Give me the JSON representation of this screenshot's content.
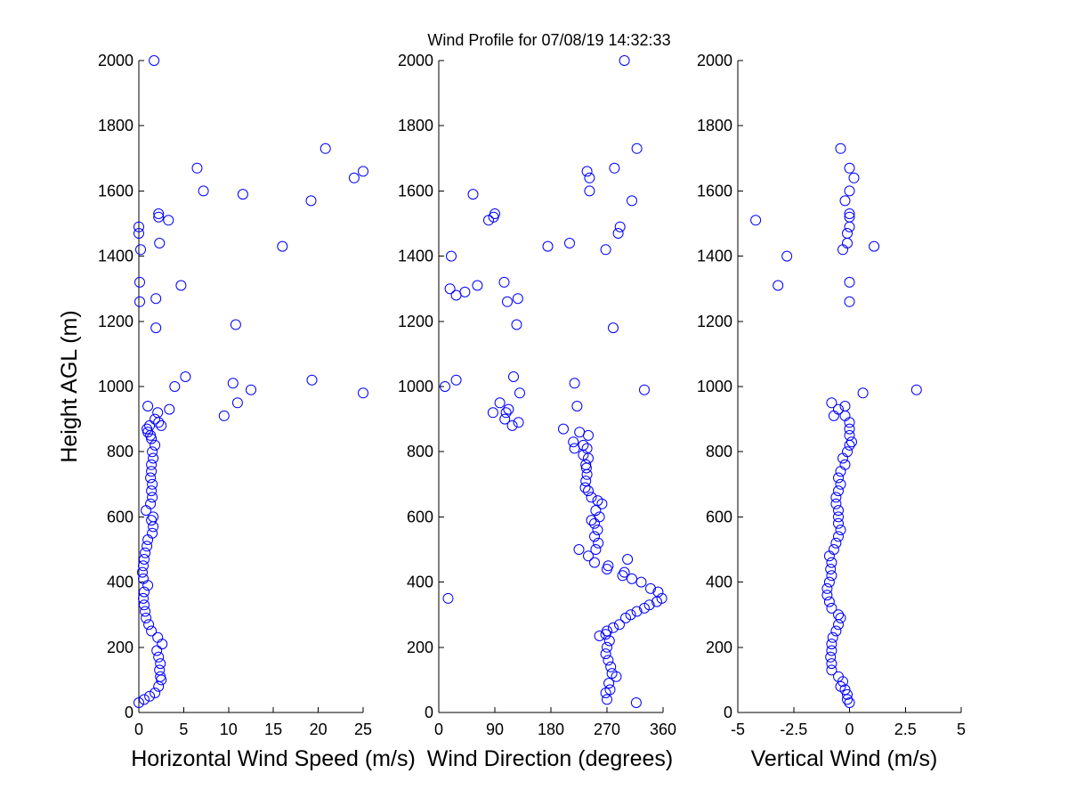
{
  "title": "Wind Profile for  07/08/19 14:32:33",
  "colors": {
    "marker": "#0000ff",
    "axis": "#000000",
    "background": "#ffffff"
  },
  "chart_data": [
    {
      "type": "scatter",
      "xlabel": "Horizontal Wind Speed (m/s)",
      "ylabel": "Height AGL (m)",
      "xlim": [
        0,
        25
      ],
      "ylim": [
        0,
        2000
      ],
      "xticks": [
        0,
        5,
        10,
        15,
        20,
        25
      ],
      "xtick_labels": [
        "0",
        "5",
        "10",
        "15",
        "20",
        "25"
      ],
      "yticks": [
        0,
        200,
        400,
        600,
        800,
        1000,
        1200,
        1400,
        1600,
        1800,
        2000
      ],
      "ytick_labels": [
        "0",
        "200",
        "400",
        "600",
        "800",
        "1000",
        "1200",
        "1400",
        "1600",
        "1800",
        "2000"
      ],
      "grid": false,
      "marker": "circle-open",
      "points": [
        [
          0,
          30
        ],
        [
          0.6,
          40
        ],
        [
          1.2,
          50
        ],
        [
          1.8,
          60
        ],
        [
          2.2,
          80
        ],
        [
          2.5,
          100
        ],
        [
          2.4,
          110
        ],
        [
          2.3,
          130
        ],
        [
          2.4,
          150
        ],
        [
          2.2,
          170
        ],
        [
          2.0,
          190
        ],
        [
          2.6,
          210
        ],
        [
          2.1,
          230
        ],
        [
          1.4,
          250
        ],
        [
          1.1,
          270
        ],
        [
          0.8,
          290
        ],
        [
          0.7,
          310
        ],
        [
          0.6,
          330
        ],
        [
          0.5,
          350
        ],
        [
          0.6,
          370
        ],
        [
          1.0,
          390
        ],
        [
          0.5,
          410
        ],
        [
          0.4,
          430
        ],
        [
          0.5,
          450
        ],
        [
          0.6,
          470
        ],
        [
          0.7,
          490
        ],
        [
          0.9,
          510
        ],
        [
          1.0,
          530
        ],
        [
          1.5,
          550
        ],
        [
          1.6,
          570
        ],
        [
          1.4,
          590
        ],
        [
          1.6,
          600
        ],
        [
          0.8,
          620
        ],
        [
          1.3,
          640
        ],
        [
          1.5,
          660
        ],
        [
          1.4,
          680
        ],
        [
          1.5,
          700
        ],
        [
          1.3,
          720
        ],
        [
          1.4,
          740
        ],
        [
          1.4,
          760
        ],
        [
          1.6,
          780
        ],
        [
          1.5,
          800
        ],
        [
          1.8,
          820
        ],
        [
          1.4,
          840
        ],
        [
          1.0,
          860
        ],
        [
          1.2,
          880
        ],
        [
          2.2,
          890
        ],
        [
          1.8,
          900
        ],
        [
          2.1,
          920
        ],
        [
          1.0,
          940
        ],
        [
          3.4,
          930
        ],
        [
          2.5,
          880
        ],
        [
          0.9,
          870
        ],
        [
          1.3,
          850
        ],
        [
          4.0,
          1000
        ],
        [
          5.2,
          1030
        ],
        [
          9.5,
          910
        ],
        [
          10.5,
          1010
        ],
        [
          11.0,
          950
        ],
        [
          12.5,
          990
        ],
        [
          19.3,
          1020
        ],
        [
          25.0,
          980
        ],
        [
          1.9,
          1180
        ],
        [
          10.8,
          1190
        ],
        [
          0.1,
          1260
        ],
        [
          1.9,
          1270
        ],
        [
          4.7,
          1310
        ],
        [
          0.1,
          1320
        ],
        [
          0.2,
          1420
        ],
        [
          2.3,
          1440
        ],
        [
          16.0,
          1430
        ],
        [
          0.0,
          1470
        ],
        [
          0.0,
          1490
        ],
        [
          3.3,
          1510
        ],
        [
          2.2,
          1520
        ],
        [
          2.2,
          1530
        ],
        [
          11.6,
          1590
        ],
        [
          7.2,
          1600
        ],
        [
          6.5,
          1670
        ],
        [
          19.2,
          1570
        ],
        [
          24.0,
          1640
        ],
        [
          25.0,
          1660
        ],
        [
          20.8,
          1730
        ],
        [
          1.7,
          2000
        ]
      ]
    },
    {
      "type": "scatter",
      "xlabel": "Wind Direction (degrees)",
      "ylabel": "",
      "xlim": [
        0,
        360
      ],
      "ylim": [
        0,
        2000
      ],
      "xticks": [
        0,
        90,
        180,
        270,
        360
      ],
      "xtick_labels": [
        "0",
        "90",
        "180",
        "270",
        "360"
      ],
      "yticks": [
        0,
        200,
        400,
        600,
        800,
        1000,
        1200,
        1400,
        1600,
        1800,
        2000
      ],
      "ytick_labels": [
        "0",
        "200",
        "400",
        "600",
        "800",
        "1000",
        "1200",
        "1400",
        "1600",
        "1800",
        "2000"
      ],
      "grid": false,
      "marker": "circle-open",
      "points": [
        [
          317,
          30
        ],
        [
          270,
          40
        ],
        [
          268,
          60
        ],
        [
          275,
          70
        ],
        [
          273,
          90
        ],
        [
          285,
          110
        ],
        [
          278,
          120
        ],
        [
          276,
          140
        ],
        [
          272,
          160
        ],
        [
          268,
          180
        ],
        [
          270,
          200
        ],
        [
          274,
          220
        ],
        [
          268,
          240
        ],
        [
          258,
          235
        ],
        [
          270,
          250
        ],
        [
          280,
          260
        ],
        [
          290,
          270
        ],
        [
          300,
          290
        ],
        [
          308,
          300
        ],
        [
          318,
          310
        ],
        [
          330,
          320
        ],
        [
          338,
          330
        ],
        [
          350,
          340
        ],
        [
          358,
          350
        ],
        [
          352,
          370
        ],
        [
          340,
          380
        ],
        [
          325,
          400
        ],
        [
          310,
          410
        ],
        [
          295,
          420
        ],
        [
          298,
          430
        ],
        [
          270,
          440
        ],
        [
          272,
          450
        ],
        [
          303,
          470
        ],
        [
          250,
          460
        ],
        [
          240,
          480
        ],
        [
          252,
          500
        ],
        [
          225,
          500
        ],
        [
          256,
          520
        ],
        [
          250,
          540
        ],
        [
          255,
          560
        ],
        [
          250,
          580
        ],
        [
          245,
          590
        ],
        [
          258,
          600
        ],
        [
          252,
          620
        ],
        [
          262,
          640
        ],
        [
          255,
          650
        ],
        [
          245,
          660
        ],
        [
          240,
          680
        ],
        [
          235,
          690
        ],
        [
          236,
          710
        ],
        [
          238,
          730
        ],
        [
          237,
          750
        ],
        [
          236,
          760
        ],
        [
          240,
          780
        ],
        [
          232,
          790
        ],
        [
          238,
          810
        ],
        [
          218,
          810
        ],
        [
          232,
          820
        ],
        [
          216,
          830
        ],
        [
          240,
          850
        ],
        [
          226,
          860
        ],
        [
          200,
          870
        ],
        [
          128,
          890
        ],
        [
          118,
          880
        ],
        [
          106,
          900
        ],
        [
          108,
          920
        ],
        [
          87,
          920
        ],
        [
          112,
          930
        ],
        [
          98,
          950
        ],
        [
          222,
          940
        ],
        [
          130,
          980
        ],
        [
          10,
          1000
        ],
        [
          218,
          1010
        ],
        [
          28,
          1020
        ],
        [
          120,
          1030
        ],
        [
          330,
          990
        ],
        [
          125,
          1190
        ],
        [
          280,
          1180
        ],
        [
          110,
          1260
        ],
        [
          127,
          1270
        ],
        [
          28,
          1280
        ],
        [
          42,
          1290
        ],
        [
          18,
          1300
        ],
        [
          62,
          1310
        ],
        [
          105,
          1320
        ],
        [
          20,
          1400
        ],
        [
          175,
          1430
        ],
        [
          210,
          1440
        ],
        [
          268,
          1420
        ],
        [
          288,
          1470
        ],
        [
          291,
          1490
        ],
        [
          80,
          1510
        ],
        [
          88,
          1520
        ],
        [
          90,
          1530
        ],
        [
          55,
          1590
        ],
        [
          242,
          1600
        ],
        [
          242,
          1640
        ],
        [
          238,
          1660
        ],
        [
          310,
          1570
        ],
        [
          282,
          1670
        ],
        [
          318,
          1730
        ],
        [
          298,
          2000
        ],
        [
          15,
          350
        ]
      ]
    },
    {
      "type": "scatter",
      "xlabel": "Vertical Wind (m/s)",
      "ylabel": "",
      "xlim": [
        -5,
        5
      ],
      "ylim": [
        0,
        2000
      ],
      "xticks": [
        -5,
        -2.5,
        0,
        2.5,
        5
      ],
      "xtick_labels": [
        "-5",
        "-2.5",
        "0",
        "2.5",
        "5"
      ],
      "yticks": [
        0,
        200,
        400,
        600,
        800,
        1000,
        1200,
        1400,
        1600,
        1800,
        2000
      ],
      "ytick_labels": [
        "0",
        "200",
        "400",
        "600",
        "800",
        "1000",
        "1200",
        "1400",
        "1600",
        "1800",
        "2000"
      ],
      "grid": false,
      "marker": "circle-open",
      "points": [
        [
          0.0,
          30
        ],
        [
          -0.1,
          40
        ],
        [
          -0.1,
          55
        ],
        [
          -0.2,
          70
        ],
        [
          -0.4,
          80
        ],
        [
          -0.3,
          95
        ],
        [
          -0.5,
          110
        ],
        [
          -0.8,
          130
        ],
        [
          -0.8,
          150
        ],
        [
          -0.85,
          170
        ],
        [
          -0.8,
          190
        ],
        [
          -0.8,
          210
        ],
        [
          -0.75,
          230
        ],
        [
          -0.6,
          250
        ],
        [
          -0.5,
          270
        ],
        [
          -0.4,
          290
        ],
        [
          -0.5,
          300
        ],
        [
          -0.8,
          320
        ],
        [
          -0.9,
          340
        ],
        [
          -1.0,
          360
        ],
        [
          -1.0,
          380
        ],
        [
          -0.9,
          400
        ],
        [
          -0.8,
          420
        ],
        [
          -0.85,
          440
        ],
        [
          -0.8,
          460
        ],
        [
          -0.9,
          480
        ],
        [
          -0.7,
          500
        ],
        [
          -0.6,
          520
        ],
        [
          -0.5,
          540
        ],
        [
          -0.4,
          560
        ],
        [
          -0.5,
          580
        ],
        [
          -0.5,
          600
        ],
        [
          -0.5,
          620
        ],
        [
          -0.6,
          640
        ],
        [
          -0.6,
          660
        ],
        [
          -0.5,
          680
        ],
        [
          -0.4,
          700
        ],
        [
          -0.5,
          720
        ],
        [
          -0.4,
          740
        ],
        [
          -0.2,
          760
        ],
        [
          -0.3,
          780
        ],
        [
          -0.1,
          800
        ],
        [
          0.0,
          820
        ],
        [
          0.1,
          830
        ],
        [
          0.0,
          850
        ],
        [
          0.0,
          870
        ],
        [
          0.0,
          890
        ],
        [
          -0.2,
          910
        ],
        [
          -0.5,
          930
        ],
        [
          -0.7,
          910
        ],
        [
          -0.8,
          950
        ],
        [
          -0.2,
          940
        ],
        [
          0.6,
          980
        ],
        [
          3.0,
          990
        ],
        [
          0.0,
          1260
        ],
        [
          0.0,
          1320
        ],
        [
          -3.2,
          1310
        ],
        [
          -2.8,
          1400
        ],
        [
          -0.3,
          1420
        ],
        [
          -0.1,
          1440
        ],
        [
          -0.1,
          1470
        ],
        [
          0.0,
          1490
        ],
        [
          0.0,
          1520
        ],
        [
          0.0,
          1530
        ],
        [
          -4.2,
          1510
        ],
        [
          1.1,
          1430
        ],
        [
          -0.2,
          1570
        ],
        [
          0.0,
          1600
        ],
        [
          0.2,
          1640
        ],
        [
          0.0,
          1670
        ],
        [
          -0.4,
          1730
        ]
      ]
    }
  ]
}
